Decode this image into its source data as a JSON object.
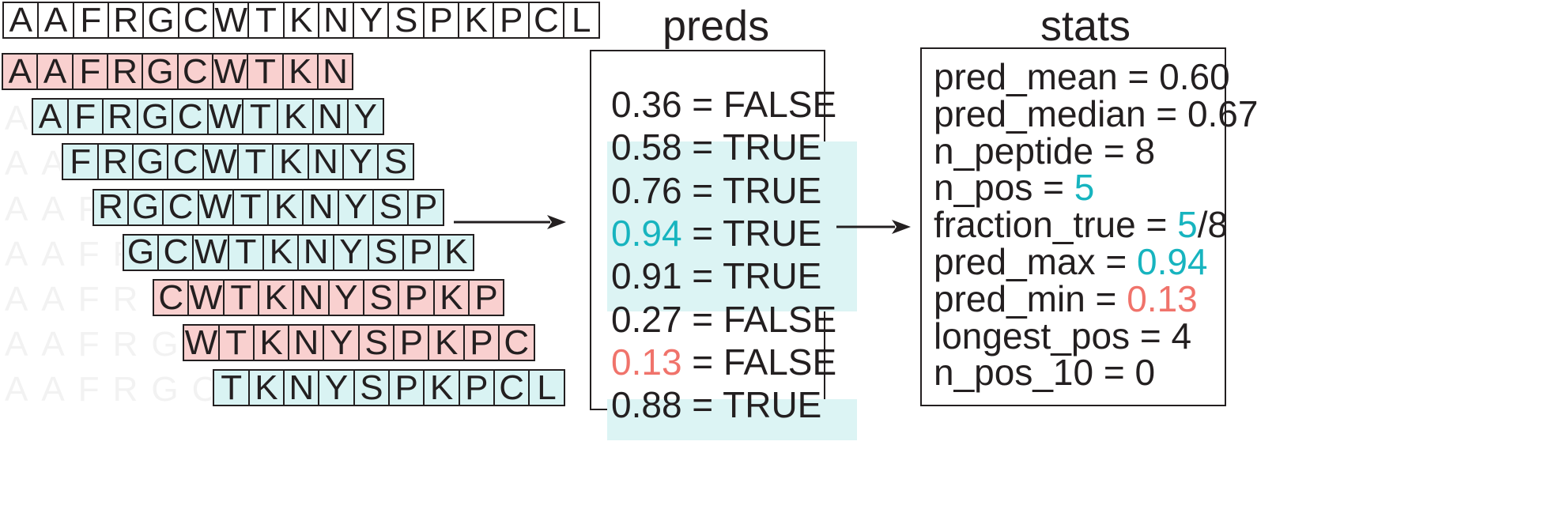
{
  "sequence": [
    "A",
    "A",
    "F",
    "R",
    "G",
    "C",
    "W",
    "T",
    "K",
    "N",
    "Y",
    "S",
    "P",
    "K",
    "P",
    "C",
    "L"
  ],
  "windows": [
    {
      "residues": [
        "A",
        "A",
        "F",
        "R",
        "G",
        "C",
        "W",
        "T",
        "K",
        "N"
      ],
      "label": "FALSE"
    },
    {
      "residues": [
        "A",
        "F",
        "R",
        "G",
        "C",
        "W",
        "T",
        "K",
        "N",
        "Y"
      ],
      "label": "TRUE"
    },
    {
      "residues": [
        "F",
        "R",
        "G",
        "C",
        "W",
        "T",
        "K",
        "N",
        "Y",
        "S"
      ],
      "label": "TRUE"
    },
    {
      "residues": [
        "R",
        "G",
        "C",
        "W",
        "T",
        "K",
        "N",
        "Y",
        "S",
        "P"
      ],
      "label": "TRUE"
    },
    {
      "residues": [
        "G",
        "C",
        "W",
        "T",
        "K",
        "N",
        "Y",
        "S",
        "P",
        "K"
      ],
      "label": "TRUE"
    },
    {
      "residues": [
        "C",
        "W",
        "T",
        "K",
        "N",
        "Y",
        "S",
        "P",
        "K",
        "P"
      ],
      "label": "FALSE"
    },
    {
      "residues": [
        "W",
        "T",
        "K",
        "N",
        "Y",
        "S",
        "P",
        "K",
        "P",
        "C"
      ],
      "label": "FALSE"
    },
    {
      "residues": [
        "T",
        "K",
        "N",
        "Y",
        "S",
        "P",
        "K",
        "P",
        "C",
        "L"
      ],
      "label": "TRUE"
    }
  ],
  "preds": {
    "title": "preds",
    "separator": " = ",
    "items": [
      {
        "value": "0.36",
        "label": "FALSE"
      },
      {
        "value": "0.58",
        "label": "TRUE"
      },
      {
        "value": "0.76",
        "label": "TRUE"
      },
      {
        "value": "0.94",
        "label": "TRUE",
        "value_color": "cyan"
      },
      {
        "value": "0.91",
        "label": "TRUE"
      },
      {
        "value": "0.27",
        "label": "FALSE"
      },
      {
        "value": "0.13",
        "label": "FALSE",
        "value_color": "red"
      },
      {
        "value": "0.88",
        "label": "TRUE"
      }
    ]
  },
  "stats": {
    "title": "stats",
    "lines": [
      {
        "text": "pred_mean = 0.60"
      },
      {
        "text": "pred_median = 0.67"
      },
      {
        "text": "n_peptide = 8"
      },
      {
        "prefix": "n_pos = ",
        "value": "5",
        "value_color": "cyan"
      },
      {
        "prefix": "fraction_true = ",
        "value": "5",
        "value_color": "cyan",
        "suffix": "/8"
      },
      {
        "prefix": "pred_max = ",
        "value": "0.94",
        "value_color": "cyan"
      },
      {
        "prefix": "pred_min = ",
        "value": "0.13",
        "value_color": "red"
      },
      {
        "text": "longest_pos = 4"
      },
      {
        "text": "n_pos_10 = 0"
      }
    ]
  },
  "colors": {
    "positive_fill": "#d9f3f3",
    "negative_fill": "#f9d0cf",
    "cyan_text": "#17b4bf",
    "red_text": "#f0736b"
  }
}
